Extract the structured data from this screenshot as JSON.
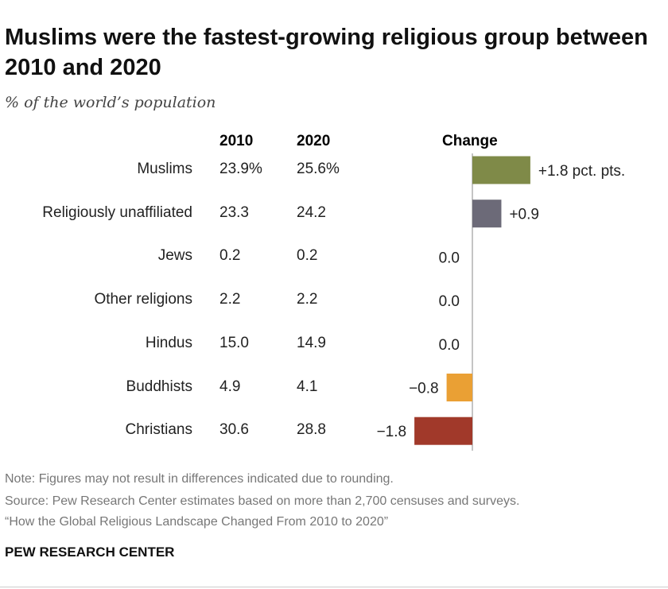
{
  "title": "Muslims were the fastest-growing religious group between 2010 and 2020",
  "subtitle": "% of the world’s population",
  "chart_data": {
    "type": "bar",
    "columns": [
      "2010",
      "2020",
      "Change"
    ],
    "categories": [
      "Muslims",
      "Religiously unaffiliated",
      "Jews",
      "Other religions",
      "Hindus",
      "Buddhists",
      "Christians"
    ],
    "values_2010": [
      "23.9%",
      "23.3",
      "0.2",
      "2.2",
      "15.0",
      "4.9",
      "30.6"
    ],
    "values_2020": [
      "25.6%",
      "24.2",
      "0.2",
      "2.2",
      "14.9",
      "4.1",
      "28.8"
    ],
    "change": [
      1.8,
      0.9,
      0.0,
      0.0,
      0.0,
      -0.8,
      -1.8
    ],
    "change_labels": [
      "+1.8 pct. pts.",
      "+0.9",
      "0.0",
      "0.0",
      "0.0",
      "−0.8",
      "−1.8"
    ],
    "colors": [
      "#7f8a48",
      "#6c6a78",
      "#999999",
      "#999999",
      "#999999",
      "#eaa034",
      "#a1392a"
    ],
    "orientation": "horizontal"
  },
  "footer": {
    "note": "Note: Figures may not result in differences indicated due to rounding.",
    "source": "Source: Pew Research Center estimates based on more than 2,700 censuses and surveys.",
    "report": "“How the Global Religious Landscape Changed From 2010 to 2020”",
    "brand": "PEW RESEARCH CENTER"
  }
}
